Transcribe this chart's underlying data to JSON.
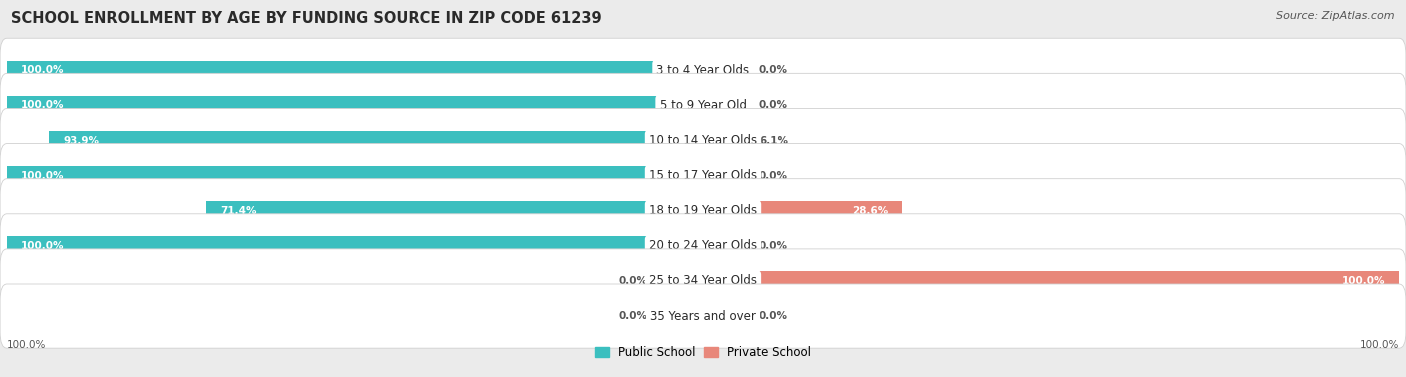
{
  "title": "SCHOOL ENROLLMENT BY AGE BY FUNDING SOURCE IN ZIP CODE 61239",
  "source": "Source: ZipAtlas.com",
  "categories": [
    "3 to 4 Year Olds",
    "5 to 9 Year Old",
    "10 to 14 Year Olds",
    "15 to 17 Year Olds",
    "18 to 19 Year Olds",
    "20 to 24 Year Olds",
    "25 to 34 Year Olds",
    "35 Years and over"
  ],
  "public_values": [
    100.0,
    100.0,
    93.9,
    100.0,
    71.4,
    100.0,
    0.0,
    0.0
  ],
  "private_values": [
    0.0,
    0.0,
    6.1,
    0.0,
    28.6,
    0.0,
    100.0,
    0.0
  ],
  "public_color": "#3BBFBF",
  "private_color": "#E8877A",
  "public_color_light": "#A0D8D8",
  "private_color_light": "#F0BDB5",
  "background_color": "#EBEBEB",
  "row_bg_color": "#FFFFFF",
  "title_fontsize": 10.5,
  "source_fontsize": 8,
  "cat_label_fontsize": 8.5,
  "bar_label_fontsize": 7.5,
  "legend_fontsize": 8.5,
  "axis_label_fontsize": 7.5,
  "figsize": [
    14.06,
    3.77
  ]
}
